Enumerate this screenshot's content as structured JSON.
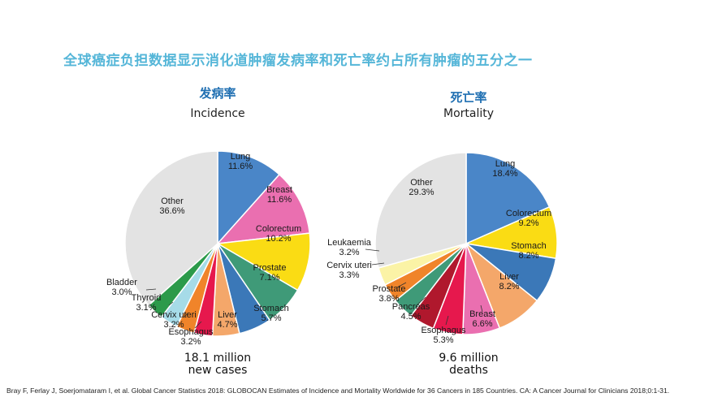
{
  "title": "全球癌症负担数据显示消化道肿瘤发病率和死亡率约占所有肿瘤的五分之一",
  "citation": "Bray F, Ferlay J, Soerjomataram I, et al.  Global Cancer Statistics 2018: GLOBOCAN Estimates of Incidence and Mortality Worldwide for 36 Cancers in 185 Countries. CA: A Cancer Journal for Clinicians 2018;0:1-31.",
  "chart_data": [
    {
      "type": "pie",
      "title_cn": "发病率",
      "title": "Incidence",
      "summary": [
        "18.1 million",
        "new cases"
      ],
      "slices": [
        {
          "label": "Lung",
          "pct_label": "11.6%",
          "value": 11.6,
          "color": "#4a86c8"
        },
        {
          "label": "Breast",
          "pct_label": "11.6%",
          "value": 11.6,
          "color": "#ea6fb0"
        },
        {
          "label": "Colorectum",
          "pct_label": "10.2%",
          "value": 10.2,
          "color": "#fadc14"
        },
        {
          "label": "Prostate",
          "pct_label": "7.1%",
          "value": 7.1,
          "color": "#3f9a78"
        },
        {
          "label": "Stomach",
          "pct_label": "5.7%",
          "value": 5.7,
          "color": "#3b78b8"
        },
        {
          "label": "Liver",
          "pct_label": "4.7%",
          "value": 4.7,
          "color": "#f4a76a"
        },
        {
          "label": "Esophagus",
          "pct_label": "3.2%",
          "value": 3.2,
          "color": "#e6184d"
        },
        {
          "label": "Cervix uteri",
          "pct_label": "3.2%",
          "value": 3.2,
          "color": "#f0842a"
        },
        {
          "label": "Thyroid",
          "pct_label": "3.1%",
          "value": 3.1,
          "color": "#a6dbe8"
        },
        {
          "label": "Bladder",
          "pct_label": "3.0%",
          "value": 3.0,
          "color": "#2c9a4a"
        },
        {
          "label": "Other",
          "pct_label": "36.6%",
          "value": 36.6,
          "color": "#e3e3e3"
        }
      ]
    },
    {
      "type": "pie",
      "title_cn": "死亡率",
      "title": "Mortality",
      "summary": [
        "9.6 million",
        "deaths"
      ],
      "slices": [
        {
          "label": "Lung",
          "pct_label": "18.4%",
          "value": 18.4,
          "color": "#4a86c8"
        },
        {
          "label": "Colorectum",
          "pct_label": "9.2%",
          "value": 9.2,
          "color": "#fadc14"
        },
        {
          "label": "Stomach",
          "pct_label": "8.2%",
          "value": 8.2,
          "color": "#3b78b8"
        },
        {
          "label": "Liver",
          "pct_label": "8.2%",
          "value": 8.2,
          "color": "#f4a76a"
        },
        {
          "label": "Breast",
          "pct_label": "6.6%",
          "value": 6.6,
          "color": "#ea6fb0"
        },
        {
          "label": "Esophagus",
          "pct_label": "5.3%",
          "value": 5.3,
          "color": "#e6184d"
        },
        {
          "label": "Pancreas",
          "pct_label": "4.5%",
          "value": 4.5,
          "color": "#b0182d"
        },
        {
          "label": "Prostate",
          "pct_label": "3.8%",
          "value": 3.8,
          "color": "#3f9a78"
        },
        {
          "label": "Cervix uteri",
          "pct_label": "3.3%",
          "value": 3.3,
          "color": "#f0842a"
        },
        {
          "label": "Leukaemia",
          "pct_label": "3.2%",
          "value": 3.2,
          "color": "#fbf3a6"
        },
        {
          "label": "Other",
          "pct_label": "29.3%",
          "value": 29.3,
          "color": "#e3e3e3"
        }
      ]
    }
  ]
}
